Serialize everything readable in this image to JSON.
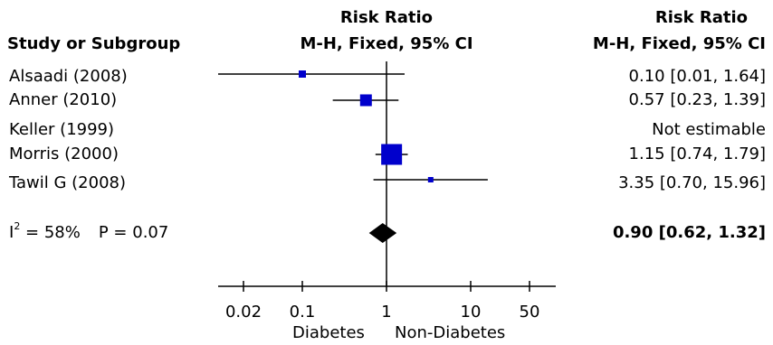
{
  "chart_data": {
    "type": "forest",
    "header_col1": "Study or Subgroup",
    "header_plot_line1": "Risk Ratio",
    "header_plot_line2": "M-H, Fixed, 95% CI",
    "header_est_line1": "Risk Ratio",
    "header_est_line2": "M-H, Fixed, 95% CI",
    "studies": [
      {
        "name": "Alsaadi (2008)",
        "rr": 0.1,
        "lo": 0.01,
        "hi": 1.64,
        "label": "0.10 [0.01, 1.64]",
        "weight": "small"
      },
      {
        "name": "Anner (2010)",
        "rr": 0.57,
        "lo": 0.23,
        "hi": 1.39,
        "label": "0.57 [0.23, 1.39]",
        "weight": "medium"
      },
      {
        "name": "Keller (1999)",
        "rr": null,
        "lo": null,
        "hi": null,
        "label": "Not estimable",
        "weight": "none"
      },
      {
        "name": "Morris (2000)",
        "rr": 1.15,
        "lo": 0.74,
        "hi": 1.79,
        "label": "1.15 [0.74, 1.79]",
        "weight": "large"
      },
      {
        "name": "Tawil G (2008)",
        "rr": 3.35,
        "lo": 0.7,
        "hi": 15.96,
        "label": "3.35 [0.70, 15.96]",
        "weight": "tiny"
      }
    ],
    "summary": {
      "heterogeneity_i2_prefix": "I",
      "heterogeneity_i2_sup": "2",
      "heterogeneity_i2_value": " = 58%",
      "heterogeneity_p": "P = 0.07",
      "rr": 0.9,
      "lo": 0.62,
      "hi": 1.32,
      "label": "0.90 [0.62, 1.32]"
    },
    "x_scale": "log",
    "x_ticks": [
      {
        "value": 0.02,
        "label": "0.02"
      },
      {
        "value": 0.1,
        "label": "0.1"
      },
      {
        "value": 1,
        "label": "1"
      },
      {
        "value": 10,
        "label": "10"
      },
      {
        "value": 50,
        "label": "50"
      }
    ],
    "x_axis_range": [
      0.01,
      100
    ],
    "xlabel_left": "Diabetes",
    "xlabel_right": "Non-Diabetes",
    "marker_color": "#0000cc"
  }
}
